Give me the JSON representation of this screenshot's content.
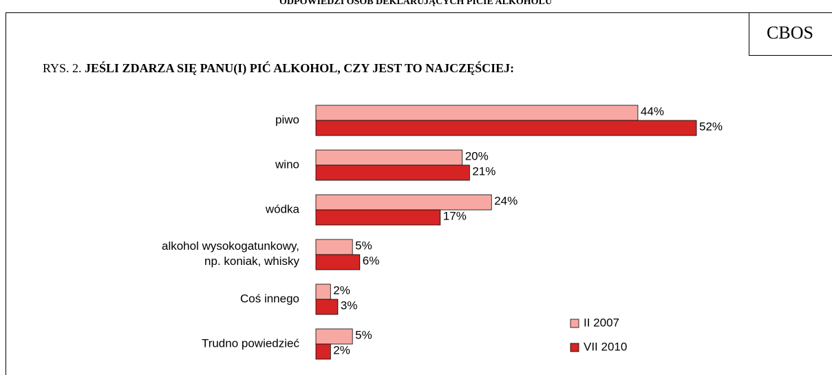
{
  "header": "ODPOWIEDZI OSÓB DEKLARUJĄCYCH PICIE ALKOHOLU",
  "brand": "CBOS",
  "chart_data": {
    "type": "bar",
    "orientation": "horizontal",
    "figure_label": "RYS. 2.",
    "title": "JEŚLI ZDARZA SIĘ PANU(I) PIĆ ALKOHOL, CZY JEST TO NAJCZĘŚCIEJ:",
    "categories": [
      "piwo",
      "wino",
      "wódka",
      "alkohol wysokogatunkowy,\nnp. koniak, whisky",
      "Coś innego",
      "Trudno powiedzieć"
    ],
    "series": [
      {
        "name": "II 2007",
        "color": "#f8a8a2",
        "values": [
          44,
          20,
          24,
          5,
          2,
          5
        ],
        "value_labels": [
          "44%",
          "20%",
          "24%",
          "5%",
          "2%",
          "5%"
        ]
      },
      {
        "name": "VII 2010",
        "color": "#d62424",
        "values": [
          52,
          21,
          17,
          6,
          3,
          2
        ],
        "value_labels": [
          "52%",
          "21%",
          "17%",
          "6%",
          "3%",
          "2%"
        ]
      }
    ],
    "legend": "bottom-right"
  }
}
